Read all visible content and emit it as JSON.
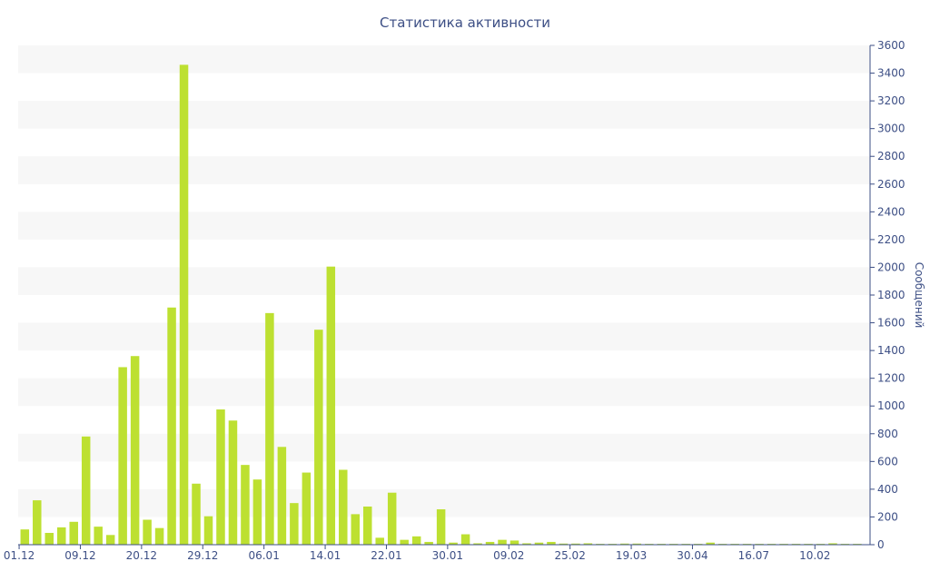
{
  "chart_data": {
    "type": "bar",
    "title": "Статистика активности",
    "xlabel": "",
    "ylabel": "Сообщений",
    "y_axis_side": "right",
    "ylim": [
      0,
      3600
    ],
    "y_ticks": [
      0,
      200,
      400,
      600,
      800,
      1000,
      1200,
      1400,
      1600,
      1800,
      2000,
      2200,
      2400,
      2600,
      2800,
      3000,
      3200,
      3400,
      3600
    ],
    "x_tick_labels": [
      "01.12",
      "09.12",
      "20.12",
      "29.12",
      "06.01",
      "14.01",
      "22.01",
      "30.01",
      "09.02",
      "25.02",
      "19.03",
      "30.04",
      "16.07",
      "10.02"
    ],
    "x_tick_bar_index": [
      0,
      5,
      10,
      15,
      20,
      25,
      30,
      35,
      40,
      45,
      50,
      55,
      60,
      65
    ],
    "grid": "horizontal alternating bands",
    "legend": "none",
    "bar_color": "#bde031",
    "values": [
      110,
      320,
      85,
      125,
      165,
      780,
      130,
      70,
      1280,
      1360,
      180,
      120,
      1710,
      3460,
      440,
      205,
      975,
      895,
      575,
      470,
      1670,
      705,
      300,
      520,
      1550,
      2005,
      540,
      220,
      275,
      50,
      375,
      35,
      60,
      20,
      255,
      15,
      75,
      10,
      20,
      35,
      30,
      10,
      15,
      20,
      8,
      8,
      10,
      6,
      6,
      8,
      8,
      6,
      6,
      6,
      6,
      6,
      15,
      6,
      6,
      6,
      6,
      6,
      6,
      6,
      6,
      6,
      10,
      6,
      6
    ]
  }
}
